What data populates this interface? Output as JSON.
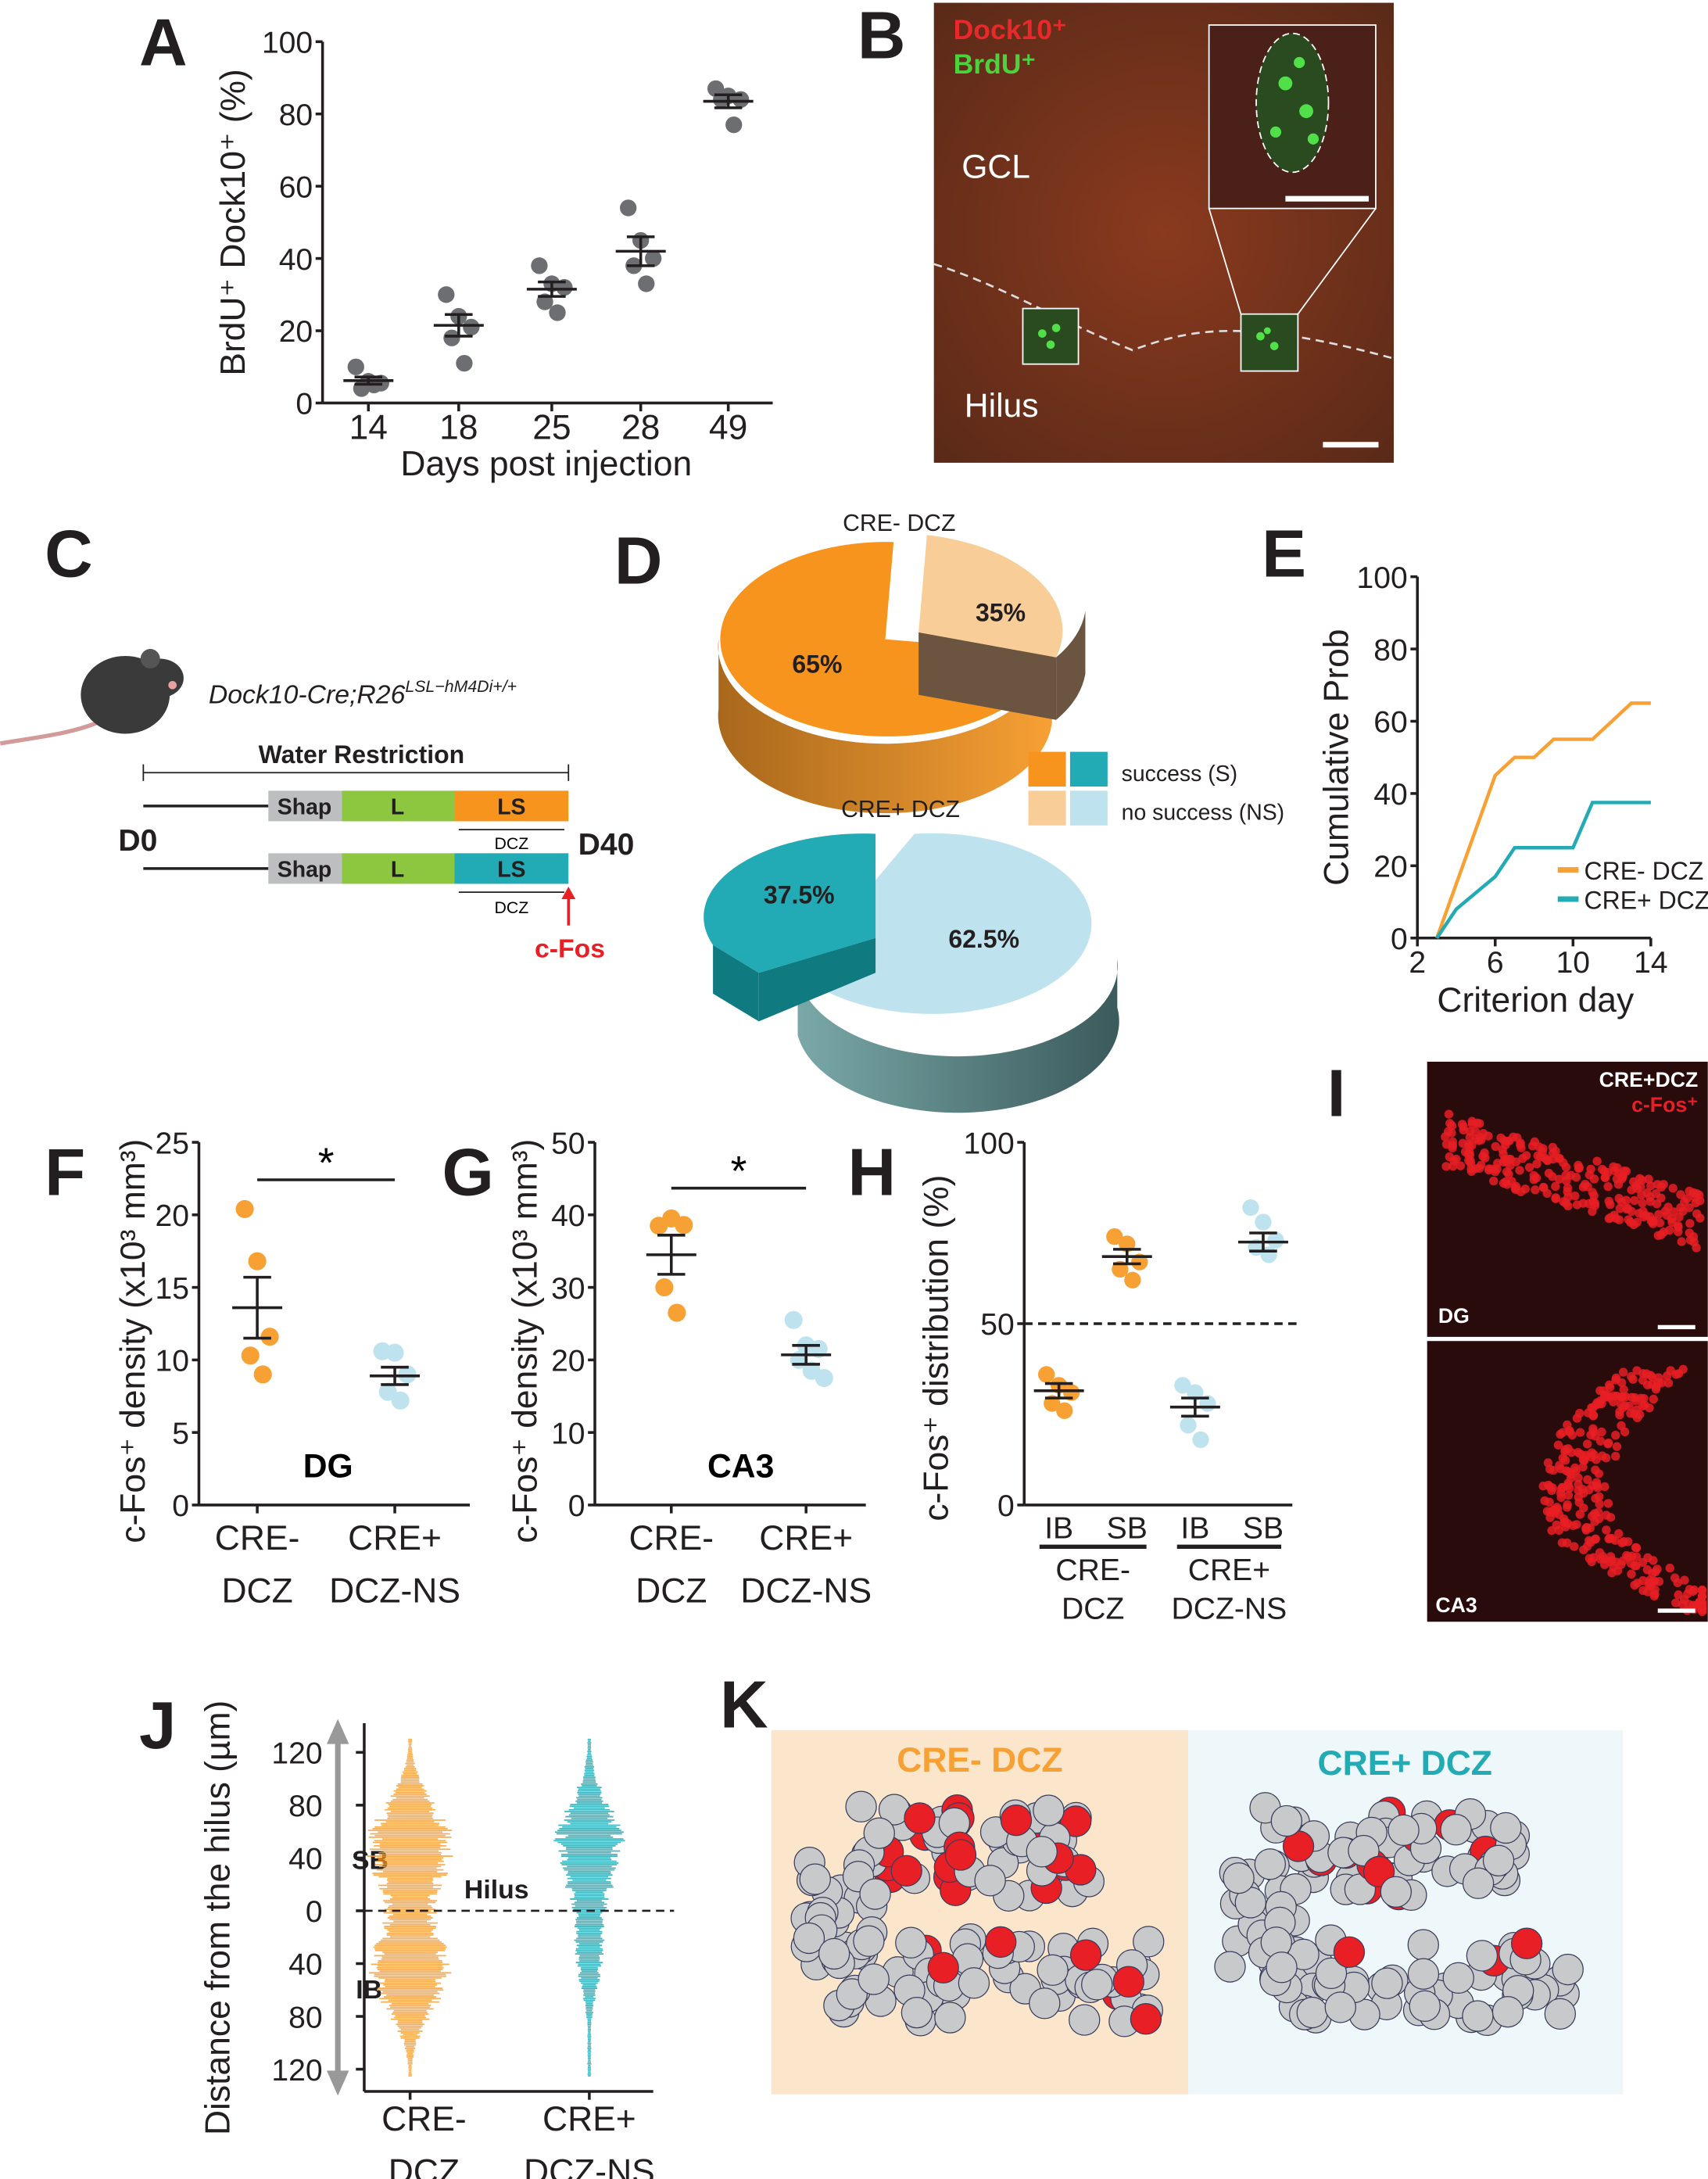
{
  "panels": {
    "A": {
      "label": "A"
    },
    "B": {
      "label": "B",
      "dock10": "Dock10⁺",
      "brdu": "BrdU⁺",
      "gcl": "GCL",
      "hilus": "Hilus"
    },
    "C": {
      "label": "C",
      "genotype": "Dock10-Cre;R26",
      "genotype_sup": "LSL−hM4Di+/+",
      "water": "Water Restriction",
      "shap": "Shap",
      "l": "L",
      "ls": "LS",
      "dcz": "DCZ",
      "d0": "D0",
      "d40": "D40",
      "cfos": "c-Fos"
    },
    "D": {
      "label": "D",
      "legend_success": "success (S)",
      "legend_nosuccess": "no success (NS)"
    },
    "E": {
      "label": "E"
    },
    "F": {
      "label": "F",
      "region": "DG"
    },
    "G": {
      "label": "G",
      "region": "CA3"
    },
    "H": {
      "label": "H",
      "group1": [
        "CRE-",
        "DCZ"
      ],
      "group2": [
        "CRE+",
        "DCZ-NS"
      ]
    },
    "I": {
      "label": "I",
      "title": "CRE+DCZ",
      "marker": "c-Fos⁺",
      "dg": "DG",
      "ca3": "CA3"
    },
    "J": {
      "label": "J",
      "sb": "SB",
      "ib": "IB",
      "hilus": "Hilus"
    },
    "K": {
      "label": "K",
      "left_title": "CRE- DCZ",
      "right_title": "CRE+ DCZ"
    }
  },
  "colors": {
    "orange": "#f7a034",
    "teal": "#22aab5",
    "lightblue": "#bfe3ee",
    "peach": "#f9cd97",
    "gray": "#6d6e71",
    "red": "#e81f25"
  },
  "chart_data": [
    {
      "id": "A",
      "type": "scatter",
      "xlabel": "Days post injection",
      "ylabel": "BrdU⁺ Dock10⁺ (%)",
      "ylim": [
        0,
        100
      ],
      "yticks": [
        0,
        20,
        40,
        60,
        80,
        100
      ],
      "categories": [
        "14",
        "18",
        "25",
        "28",
        "49"
      ],
      "points": [
        [
          10,
          6,
          5.5,
          4,
          5
        ],
        [
          30,
          24,
          21,
          18,
          11
        ],
        [
          38,
          33,
          32,
          28,
          25
        ],
        [
          54,
          45,
          40,
          38,
          33
        ],
        [
          87,
          85,
          84,
          84,
          77
        ]
      ],
      "mean": [
        6.2,
        21.5,
        31.5,
        42,
        83.5
      ],
      "sem": [
        1,
        3,
        2,
        4,
        1.8
      ]
    },
    {
      "id": "D1",
      "type": "pie",
      "title": "CRE- DCZ",
      "labels": [
        "success (S)",
        "no success (NS)"
      ],
      "values": [
        65,
        35
      ],
      "value_labels": [
        "65%",
        "35%"
      ]
    },
    {
      "id": "D2",
      "type": "pie",
      "title": "CRE+ DCZ",
      "labels": [
        "success (S)",
        "no success (NS)"
      ],
      "values": [
        37.5,
        62.5
      ],
      "value_labels": [
        "37.5%",
        "62.5%"
      ]
    },
    {
      "id": "E",
      "type": "line",
      "xlabel": "Criterion day",
      "ylabel": "Cumulative Prob",
      "xlim": [
        2,
        14
      ],
      "ylim": [
        0,
        100
      ],
      "xticks": [
        2,
        6,
        10,
        14
      ],
      "yticks": [
        0,
        20,
        40,
        60,
        80,
        100
      ],
      "legend": "bottom-right",
      "series": [
        {
          "name": "CRE- DCZ",
          "x": [
            3,
            6,
            7,
            8,
            9,
            11,
            13,
            14
          ],
          "y": [
            0,
            45,
            50,
            50,
            55,
            55,
            65,
            65
          ]
        },
        {
          "name": "CRE+ DCZ",
          "x": [
            3,
            4,
            6,
            7,
            10,
            11,
            14
          ],
          "y": [
            0,
            8,
            17,
            25,
            25,
            37.5,
            37.5
          ]
        }
      ]
    },
    {
      "id": "F",
      "type": "scatter",
      "ylabel": "c-Fos⁺ density (x10³ mm³)",
      "ylim": [
        0,
        25
      ],
      "yticks": [
        0,
        5,
        10,
        15,
        20,
        25
      ],
      "categories": [
        [
          "CRE-",
          "DCZ"
        ],
        [
          "CRE+",
          "DCZ-NS"
        ]
      ],
      "significance": "*",
      "points": [
        [
          20.4,
          16.8,
          11.6,
          10.3,
          9.0
        ],
        [
          10.6,
          10.5,
          9.0,
          7.8,
          7.2
        ]
      ],
      "mean": [
        13.6,
        8.9
      ],
      "sem": [
        2.1,
        0.6
      ]
    },
    {
      "id": "G",
      "type": "scatter",
      "ylabel": "c-Fos⁺ density (x10³ mm³)",
      "ylim": [
        0,
        50
      ],
      "yticks": [
        0,
        10,
        20,
        30,
        40,
        50
      ],
      "categories": [
        [
          "CRE-",
          "DCZ"
        ],
        [
          "CRE+",
          "DCZ-NS"
        ]
      ],
      "significance": "*",
      "points": [
        [
          38.5,
          39.5,
          38.6,
          30,
          26.5
        ],
        [
          25.5,
          22,
          21.5,
          20,
          18.5,
          17.5
        ]
      ],
      "mean": [
        34.5,
        20.7
      ],
      "sem": [
        2.7,
        1.3
      ]
    },
    {
      "id": "H",
      "type": "scatter",
      "ylabel": "c-Fos⁺ distribution (%)",
      "ylim": [
        0,
        100
      ],
      "yticks": [
        0,
        50,
        100
      ],
      "reference_line": 50,
      "categories": [
        "IB",
        "SB",
        "IB",
        "SB"
      ],
      "points": [
        [
          36,
          33,
          31,
          28,
          26
        ],
        [
          74,
          72,
          67,
          65,
          62
        ],
        [
          33,
          31,
          28,
          22,
          18
        ],
        [
          82,
          78,
          73,
          71,
          69
        ]
      ],
      "mean": [
        31.5,
        68.5,
        27,
        72.5
      ],
      "sem": [
        2,
        2,
        2.5,
        2.5
      ]
    },
    {
      "id": "J",
      "type": "scatter",
      "ylabel": "Distance from the hilus (µm)",
      "ylim": [
        -130,
        130
      ],
      "yticks": [
        120,
        80,
        40,
        0,
        40,
        80,
        120
      ],
      "categories": [
        [
          "CRE-",
          "DCZ"
        ],
        [
          "CRE+",
          "DCZ-NS"
        ]
      ]
    }
  ]
}
